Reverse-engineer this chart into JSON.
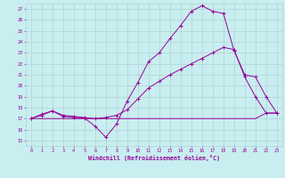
{
  "xlabel": "Windchill (Refroidissement éolien,°C)",
  "background_color": "#c8eef0",
  "grid_color": "#aacccc",
  "line_color": "#990099",
  "xlim": [
    -0.5,
    23.5
  ],
  "ylim": [
    14.5,
    27.5
  ],
  "xticks": [
    0,
    1,
    2,
    3,
    4,
    5,
    6,
    7,
    8,
    9,
    10,
    11,
    12,
    13,
    14,
    15,
    16,
    17,
    18,
    19,
    20,
    21,
    22,
    23
  ],
  "yticks": [
    15,
    16,
    17,
    18,
    19,
    20,
    21,
    22,
    23,
    24,
    25,
    26,
    27
  ],
  "line1_x": [
    0,
    1,
    2,
    3,
    4,
    5,
    6,
    7,
    8,
    9,
    10,
    11,
    12,
    13,
    14,
    15,
    16,
    17,
    18,
    19,
    20,
    21,
    22,
    23
  ],
  "line1_y": [
    17,
    17.4,
    17.7,
    17.2,
    17.1,
    17.05,
    16.3,
    15.3,
    16.5,
    18.6,
    20.3,
    22.2,
    23.0,
    24.3,
    25.5,
    26.8,
    27.3,
    26.8,
    26.6,
    23.2,
    21.0,
    20.8,
    19.0,
    17.5
  ],
  "line2_x": [
    0,
    1,
    2,
    3,
    4,
    5,
    6,
    7,
    8,
    9,
    10,
    11,
    12,
    13,
    14,
    15,
    16,
    17,
    18,
    19,
    20,
    21,
    22,
    23
  ],
  "line2_y": [
    17,
    17,
    17,
    17,
    17,
    17,
    17,
    17,
    17,
    17,
    17,
    17,
    17,
    17,
    17,
    17,
    17,
    17,
    17,
    17,
    17,
    17,
    17.5,
    17.5
  ],
  "line3_x": [
    0,
    1,
    2,
    3,
    4,
    5,
    6,
    7,
    8,
    9,
    10,
    11,
    12,
    13,
    14,
    15,
    16,
    17,
    18,
    19,
    20,
    21,
    22,
    23
  ],
  "line3_y": [
    17,
    17.3,
    17.7,
    17.3,
    17.2,
    17.1,
    17.0,
    17.1,
    17.3,
    17.8,
    18.8,
    19.8,
    20.4,
    21.0,
    21.5,
    22.0,
    22.5,
    23.0,
    23.5,
    23.3,
    20.8,
    19.0,
    17.5,
    17.5
  ]
}
